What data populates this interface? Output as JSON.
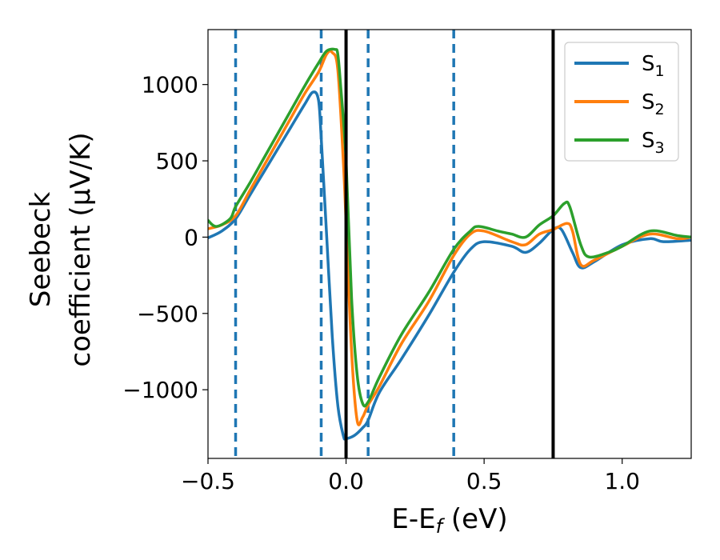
{
  "chart_data": {
    "type": "line",
    "xlabel_main": "E-E",
    "xlabel_sub": "f",
    "xlabel_unit": " (eV)",
    "ylabel_line1": "Seebeck",
    "ylabel_line2": "coefficient  (μV/K)",
    "xlim": [
      -0.5,
      1.25
    ],
    "ylim": [
      -1450,
      1360
    ],
    "xticks": [
      -0.5,
      0.0,
      0.5,
      1.0
    ],
    "xtick_labels": [
      "−0.5",
      "0.0",
      "0.5",
      "1.0"
    ],
    "yticks": [
      -1000,
      -500,
      0,
      500,
      1000
    ],
    "ytick_labels": [
      "−1000",
      "−500",
      "0",
      "500",
      "1000"
    ],
    "legend_position": "top-right",
    "grid": false,
    "vlines_solid": [
      0.0,
      0.75
    ],
    "vlines_dashed": [
      -0.4,
      -0.09,
      0.08,
      0.39
    ],
    "series": [
      {
        "name": "S",
        "sub": "1",
        "color": "#1f77b4",
        "points": [
          [
            -0.5,
            -5
          ],
          [
            -0.45,
            40
          ],
          [
            -0.4,
            120
          ],
          [
            -0.35,
            270
          ],
          [
            -0.3,
            420
          ],
          [
            -0.25,
            570
          ],
          [
            -0.2,
            720
          ],
          [
            -0.15,
            870
          ],
          [
            -0.12,
            950
          ],
          [
            -0.1,
            900
          ],
          [
            -0.09,
            650
          ],
          [
            -0.07,
            0
          ],
          [
            -0.05,
            -650
          ],
          [
            -0.03,
            -1100
          ],
          [
            -0.01,
            -1300
          ],
          [
            0.0,
            -1320
          ],
          [
            0.03,
            -1300
          ],
          [
            0.06,
            -1250
          ],
          [
            0.08,
            -1200
          ],
          [
            0.12,
            -1020
          ],
          [
            0.2,
            -800
          ],
          [
            0.3,
            -510
          ],
          [
            0.39,
            -230
          ],
          [
            0.45,
            -80
          ],
          [
            0.5,
            -30
          ],
          [
            0.6,
            -60
          ],
          [
            0.65,
            -100
          ],
          [
            0.7,
            -40
          ],
          [
            0.75,
            50
          ],
          [
            0.78,
            50
          ],
          [
            0.82,
            -100
          ],
          [
            0.85,
            -200
          ],
          [
            0.9,
            -160
          ],
          [
            1.0,
            -50
          ],
          [
            1.1,
            -10
          ],
          [
            1.15,
            -30
          ],
          [
            1.25,
            -20
          ]
        ]
      },
      {
        "name": "S",
        "sub": "2",
        "color": "#ff7f0e",
        "points": [
          [
            -0.5,
            55
          ],
          [
            -0.45,
            80
          ],
          [
            -0.4,
            140
          ],
          [
            -0.35,
            300
          ],
          [
            -0.3,
            460
          ],
          [
            -0.25,
            620
          ],
          [
            -0.2,
            780
          ],
          [
            -0.15,
            940
          ],
          [
            -0.1,
            1080
          ],
          [
            -0.07,
            1200
          ],
          [
            -0.05,
            1210
          ],
          [
            -0.03,
            1100
          ],
          [
            -0.01,
            500
          ],
          [
            0.0,
            100
          ],
          [
            0.02,
            -750
          ],
          [
            0.04,
            -1200
          ],
          [
            0.06,
            -1180
          ],
          [
            0.08,
            -1100
          ],
          [
            0.12,
            -980
          ],
          [
            0.2,
            -700
          ],
          [
            0.3,
            -420
          ],
          [
            0.39,
            -120
          ],
          [
            0.45,
            20
          ],
          [
            0.5,
            40
          ],
          [
            0.6,
            -30
          ],
          [
            0.65,
            -50
          ],
          [
            0.7,
            20
          ],
          [
            0.75,
            50
          ],
          [
            0.8,
            90
          ],
          [
            0.82,
            40
          ],
          [
            0.85,
            -180
          ],
          [
            0.9,
            -150
          ],
          [
            1.0,
            -60
          ],
          [
            1.1,
            20
          ],
          [
            1.2,
            -10
          ],
          [
            1.25,
            0
          ]
        ]
      },
      {
        "name": "S",
        "sub": "3",
        "color": "#2ca02c",
        "points": [
          [
            -0.5,
            110
          ],
          [
            -0.47,
            70
          ],
          [
            -0.42,
            120
          ],
          [
            -0.4,
            200
          ],
          [
            -0.35,
            350
          ],
          [
            -0.3,
            510
          ],
          [
            -0.25,
            670
          ],
          [
            -0.2,
            830
          ],
          [
            -0.15,
            990
          ],
          [
            -0.1,
            1140
          ],
          [
            -0.07,
            1220
          ],
          [
            -0.04,
            1230
          ],
          [
            -0.03,
            1200
          ],
          [
            -0.02,
            1000
          ],
          [
            0.0,
            500
          ],
          [
            0.02,
            -400
          ],
          [
            0.04,
            -900
          ],
          [
            0.06,
            -1090
          ],
          [
            0.08,
            -1080
          ],
          [
            0.12,
            -920
          ],
          [
            0.2,
            -640
          ],
          [
            0.3,
            -360
          ],
          [
            0.39,
            -80
          ],
          [
            0.45,
            40
          ],
          [
            0.48,
            70
          ],
          [
            0.55,
            40
          ],
          [
            0.6,
            20
          ],
          [
            0.65,
            0
          ],
          [
            0.7,
            80
          ],
          [
            0.75,
            140
          ],
          [
            0.79,
            220
          ],
          [
            0.81,
            200
          ],
          [
            0.85,
            -50
          ],
          [
            0.88,
            -130
          ],
          [
            0.95,
            -100
          ],
          [
            1.0,
            -60
          ],
          [
            1.1,
            40
          ],
          [
            1.2,
            10
          ],
          [
            1.25,
            0
          ]
        ]
      }
    ]
  }
}
